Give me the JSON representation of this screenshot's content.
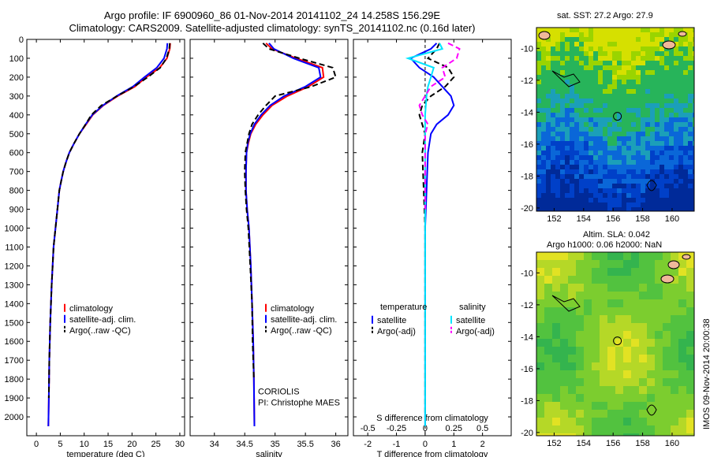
{
  "header": {
    "title_line1": "Argo profile: IF 6900960_86 01-Nov-2014 20141102_24 14.258S 156.29E",
    "title_line2": "Climatology: CARS2009. Satellite-adjusted climatology: synTS_20141102.nc (0.16d later)"
  },
  "right_panels": {
    "sst_title": "sat. SST: 27.2 Argo: 27.9",
    "sla_title1": "Altim. SLA: 0.042",
    "sla_title2": "Argo h1000: 0.06 h2000: NaN",
    "side_label": "IMOS 09-Nov-2014 20:00:38",
    "lat_ticks": [
      "-10",
      "-12",
      "-14",
      "-16",
      "-18",
      "-20"
    ],
    "lon_ticks": [
      "152",
      "154",
      "156",
      "158",
      "160"
    ],
    "argo_position": {
      "lon": 156.29,
      "lat": -14.258
    }
  },
  "colors": {
    "climatology": "#ff0000",
    "satellite": "#0000ff",
    "argo": "#000000",
    "satellite_salinity": "#00e5ff",
    "argo_salinity": "#ff00ff"
  },
  "chart_data": [
    {
      "type": "line",
      "xlabel": "temperature (deg C)",
      "ylabel": "",
      "xlim": [
        -2,
        31
      ],
      "ylim": [
        2100,
        0
      ],
      "xticks": [
        0,
        5,
        10,
        15,
        20,
        25,
        30
      ],
      "yticks": [
        0,
        100,
        200,
        300,
        400,
        500,
        600,
        700,
        800,
        900,
        1000,
        1100,
        1200,
        1300,
        1400,
        1500,
        1600,
        1700,
        1800,
        1900,
        2000
      ],
      "legend": [
        "climatology",
        "satellite-adj. clim.",
        "Argo(..raw -QC)"
      ],
      "series": [
        {
          "name": "climatology",
          "color": "#ff0000",
          "dash": false,
          "x": [
            28.0,
            27.9,
            27.3,
            25.8,
            23.0,
            20.6,
            17.0,
            14.0,
            11.8,
            10.4,
            9.0,
            7.9,
            6.9,
            6.2,
            5.6,
            5.2,
            4.8,
            4.4,
            3.6,
            3.2,
            2.9,
            2.7,
            2.6,
            2.5
          ],
          "y": [
            20,
            50,
            100,
            150,
            200,
            250,
            300,
            350,
            400,
            450,
            500,
            550,
            600,
            650,
            700,
            750,
            800,
            900,
            1100,
            1300,
            1500,
            1700,
            1900,
            2050
          ]
        },
        {
          "name": "satellite-adj. clim.",
          "color": "#0000ff",
          "dash": false,
          "x": [
            27.4,
            27.3,
            26.7,
            25.2,
            22.6,
            20.2,
            16.8,
            13.9,
            11.7,
            10.3,
            9.0,
            7.9,
            6.9,
            6.2,
            5.6,
            5.2,
            4.8,
            4.4,
            3.6,
            3.2,
            2.9,
            2.7,
            2.6,
            2.5
          ],
          "y": [
            20,
            50,
            100,
            150,
            200,
            250,
            300,
            350,
            400,
            450,
            500,
            550,
            600,
            650,
            700,
            750,
            800,
            900,
            1100,
            1300,
            1500,
            1700,
            1900,
            2050
          ]
        },
        {
          "name": "Argo(..raw -QC)",
          "color": "#000000",
          "dash": true,
          "x": [
            27.9,
            27.8,
            27.2,
            25.9,
            23.3,
            20.4,
            16.9,
            13.6,
            11.5,
            10.3,
            9.0,
            7.9,
            6.9,
            6.2,
            5.6,
            5.2,
            4.8,
            4.4,
            3.6,
            3.2,
            2.9,
            2.7,
            2.6
          ],
          "y": [
            20,
            50,
            100,
            150,
            200,
            250,
            300,
            350,
            400,
            450,
            500,
            550,
            600,
            650,
            700,
            750,
            800,
            900,
            1100,
            1300,
            1500,
            1700,
            1900
          ]
        }
      ]
    },
    {
      "type": "line",
      "xlabel": "salinity",
      "ylabel": "",
      "xlim": [
        33.6,
        36.2
      ],
      "ylim": [
        2100,
        0
      ],
      "xticks": [
        34,
        34.5,
        35,
        35.5,
        36
      ],
      "legend": [
        "climatology",
        "satellite-adj. clim.",
        "Argo(..raw -QC)"
      ],
      "annotation": [
        "CORIOLIS",
        "PI: Christophe MAES"
      ],
      "series": [
        {
          "name": "climatology",
          "color": "#ff0000",
          "dash": false,
          "x": [
            34.85,
            34.95,
            35.35,
            35.78,
            35.8,
            35.55,
            35.2,
            34.95,
            34.8,
            34.68,
            34.6,
            34.56,
            34.53,
            34.52,
            34.52,
            34.54,
            34.57,
            34.6,
            34.62,
            34.64,
            34.65,
            34.66
          ],
          "y": [
            20,
            50,
            100,
            150,
            200,
            250,
            300,
            350,
            400,
            450,
            500,
            550,
            600,
            700,
            800,
            900,
            1000,
            1200,
            1400,
            1600,
            1800,
            2050
          ]
        },
        {
          "name": "satellite-adj. clim.",
          "color": "#0000ff",
          "dash": false,
          "x": [
            34.9,
            34.98,
            35.3,
            35.72,
            35.75,
            35.5,
            35.15,
            34.92,
            34.77,
            34.66,
            34.59,
            34.55,
            34.53,
            34.52,
            34.52,
            34.54,
            34.57,
            34.6,
            34.62,
            34.64,
            34.65,
            34.66
          ],
          "y": [
            20,
            50,
            100,
            150,
            200,
            250,
            300,
            350,
            400,
            450,
            500,
            550,
            600,
            700,
            800,
            900,
            1000,
            1200,
            1400,
            1600,
            1800,
            2050
          ]
        },
        {
          "name": "Argo(..raw -QC)",
          "color": "#000000",
          "dash": true,
          "x": [
            34.8,
            34.9,
            35.4,
            35.95,
            36.0,
            35.6,
            35.0,
            34.85,
            34.72,
            34.62,
            34.57,
            34.54,
            34.51,
            34.5,
            34.51,
            34.53,
            34.56,
            34.59,
            34.62,
            34.63,
            34.65
          ],
          "y": [
            20,
            50,
            100,
            150,
            200,
            250,
            300,
            350,
            400,
            450,
            500,
            550,
            600,
            700,
            800,
            900,
            1000,
            1200,
            1400,
            1600,
            1800
          ]
        }
      ]
    },
    {
      "type": "line",
      "xlabel": "T difference from climatology",
      "xlabel_top": "S difference from climatology",
      "ylabel": "",
      "xlim": [
        -2.5,
        3
      ],
      "ylim": [
        2100,
        0
      ],
      "xticks": [
        -2,
        -1,
        0,
        1,
        2
      ],
      "top_ticks": [
        {
          "label": "-0.5",
          "pos": -2
        },
        {
          "label": "-0.25",
          "pos": -1
        },
        {
          "label": "0",
          "pos": 0
        },
        {
          "label": "0.25",
          "pos": 1
        },
        {
          "label": "0.5",
          "pos": 2
        }
      ],
      "legend_left_title": "temperature",
      "legend_right_title": "salinity",
      "legend": [
        "satellite",
        "Argo(-adj)",
        "satellite",
        "Argo(-adj)"
      ],
      "series": [
        {
          "name": "satellite",
          "color": "#0000ff",
          "dash": false,
          "x": [
            0.4,
            0.2,
            -0.5,
            -0.2,
            0.3,
            0.6,
            0.9,
            1.0,
            0.8,
            0.4,
            0.2,
            0.1,
            0.05,
            0,
            0,
            0
          ],
          "y": [
            20,
            50,
            100,
            150,
            200,
            250,
            300,
            350,
            400,
            450,
            500,
            600,
            800,
            1000,
            1500,
            2050
          ]
        },
        {
          "name": "Argo(-adj)",
          "color": "#000000",
          "dash": true,
          "x": [
            0.5,
            0.4,
            0.1,
            0.8,
            1.0,
            0.7,
            0.2,
            -0.1,
            -0.2,
            0,
            -0.1,
            -0.05,
            0,
            0,
            0
          ],
          "y": [
            20,
            50,
            100,
            150,
            200,
            250,
            300,
            350,
            400,
            500,
            600,
            800,
            1000,
            1500,
            2000
          ]
        },
        {
          "name": "satellite",
          "color": "#00e5ff",
          "dash": false,
          "x": [
            0.5,
            0.6,
            -0.6,
            0.3,
            0.2,
            0.1,
            0.05,
            0,
            0,
            0,
            0,
            0
          ],
          "y": [
            20,
            50,
            100,
            150,
            200,
            250,
            300,
            400,
            600,
            1000,
            1500,
            2050
          ]
        },
        {
          "name": "Argo(-adj)",
          "color": "#ff00ff",
          "dash": true,
          "x": [
            0.8,
            1.2,
            1.1,
            0.6,
            0.7,
            0.2,
            -0.2,
            -0.1,
            0.1,
            0,
            0,
            0
          ],
          "y": [
            20,
            50,
            100,
            150,
            200,
            250,
            350,
            400,
            450,
            500,
            700,
            900
          ]
        }
      ]
    }
  ]
}
